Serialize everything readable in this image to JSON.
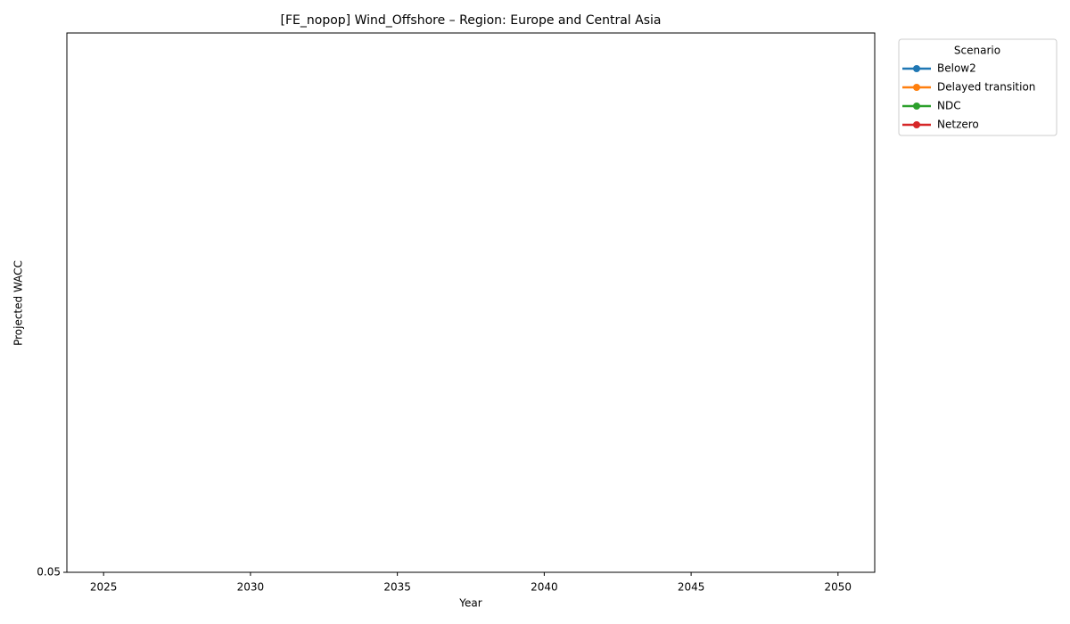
{
  "chart_data": {
    "type": "line",
    "title": "[FE_nopop] Wind_Offshore – Region: Europe and Central Asia",
    "x_label": "Year",
    "y_label": "Projected WACC",
    "x": [
      2025,
      2030,
      2035,
      2040,
      2045,
      2050
    ],
    "series": [
      {
        "name": "Below2",
        "color": "#1f77b4",
        "values": [
          null,
          null,
          null,
          null,
          null,
          null
        ]
      },
      {
        "name": "Delayed transition",
        "color": "#ff7f0e",
        "values": [
          null,
          null,
          null,
          null,
          null,
          null
        ]
      },
      {
        "name": "NDC",
        "color": "#2ca02c",
        "values": [
          null,
          null,
          null,
          null,
          null,
          null
        ]
      },
      {
        "name": "Netzero",
        "color": "#d62728",
        "values": [
          null,
          null,
          null,
          null,
          null,
          null
        ]
      }
    ],
    "legend_title": "Scenario",
    "legend": "outside-right",
    "xlim": [
      2023.75,
      2051.25
    ],
    "xticks": [
      2025,
      2030,
      2035,
      2040,
      2045,
      2050
    ],
    "ylim": [
      0.05,
      0.0505
    ],
    "yticks": [
      0.05
    ],
    "grid": false
  }
}
